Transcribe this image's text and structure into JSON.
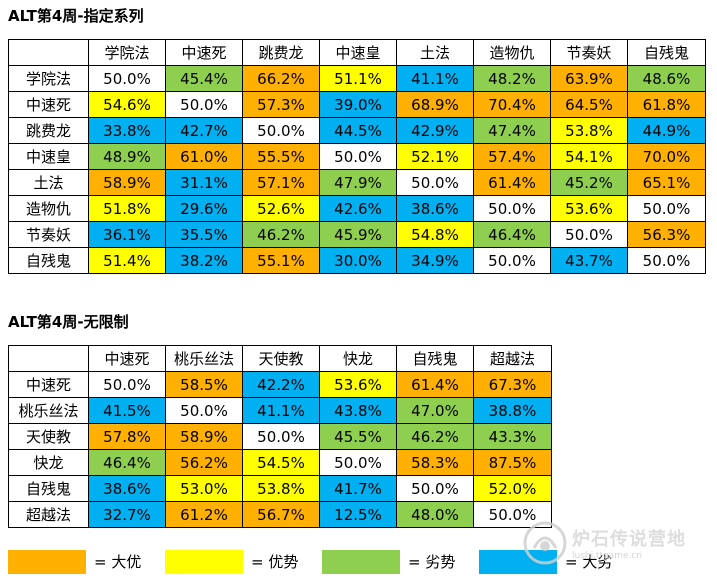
{
  "table1": {
    "title": "ALT第4周-指定系列",
    "columns": [
      "学院法",
      "中速死",
      "跳费龙",
      "中速皇",
      "土法",
      "造物仇",
      "节奏妖",
      "自残鬼"
    ],
    "rows": [
      {
        "label": "学院法",
        "cells": [
          [
            "50.0%",
            "even"
          ],
          [
            "45.4%",
            "lie"
          ],
          [
            "66.2%",
            "dayou"
          ],
          [
            "51.1%",
            "you"
          ],
          [
            "41.1%",
            "dalie"
          ],
          [
            "48.2%",
            "lie"
          ],
          [
            "63.9%",
            "dayou"
          ],
          [
            "48.6%",
            "lie"
          ]
        ]
      },
      {
        "label": "中速死",
        "cells": [
          [
            "54.6%",
            "you"
          ],
          [
            "50.0%",
            "even"
          ],
          [
            "57.3%",
            "dayou"
          ],
          [
            "39.0%",
            "dalie"
          ],
          [
            "68.9%",
            "dayou"
          ],
          [
            "70.4%",
            "dayou"
          ],
          [
            "64.5%",
            "dayou"
          ],
          [
            "61.8%",
            "dayou"
          ]
        ]
      },
      {
        "label": "跳费龙",
        "cells": [
          [
            "33.8%",
            "dalie"
          ],
          [
            "42.7%",
            "dalie"
          ],
          [
            "50.0%",
            "even"
          ],
          [
            "44.5%",
            "dalie"
          ],
          [
            "42.9%",
            "dalie"
          ],
          [
            "47.4%",
            "lie"
          ],
          [
            "53.8%",
            "you"
          ],
          [
            "44.9%",
            "dalie"
          ]
        ]
      },
      {
        "label": "中速皇",
        "cells": [
          [
            "48.9%",
            "lie"
          ],
          [
            "61.0%",
            "dayou"
          ],
          [
            "55.5%",
            "dayou"
          ],
          [
            "50.0%",
            "even"
          ],
          [
            "52.1%",
            "you"
          ],
          [
            "57.4%",
            "dayou"
          ],
          [
            "54.1%",
            "you"
          ],
          [
            "70.0%",
            "dayou"
          ]
        ]
      },
      {
        "label": "土法",
        "cells": [
          [
            "58.9%",
            "dayou"
          ],
          [
            "31.1%",
            "dalie"
          ],
          [
            "57.1%",
            "dayou"
          ],
          [
            "47.9%",
            "lie"
          ],
          [
            "50.0%",
            "even"
          ],
          [
            "61.4%",
            "dayou"
          ],
          [
            "45.2%",
            "lie"
          ],
          [
            "65.1%",
            "dayou"
          ]
        ]
      },
      {
        "label": "造物仇",
        "cells": [
          [
            "51.8%",
            "you"
          ],
          [
            "29.6%",
            "dalie"
          ],
          [
            "52.6%",
            "you"
          ],
          [
            "42.6%",
            "dalie"
          ],
          [
            "38.6%",
            "dalie"
          ],
          [
            "50.0%",
            "even"
          ],
          [
            "53.6%",
            "you"
          ],
          [
            "50.0%",
            "even"
          ]
        ]
      },
      {
        "label": "节奏妖",
        "cells": [
          [
            "36.1%",
            "dalie"
          ],
          [
            "35.5%",
            "dalie"
          ],
          [
            "46.2%",
            "lie"
          ],
          [
            "45.9%",
            "lie"
          ],
          [
            "54.8%",
            "you"
          ],
          [
            "46.4%",
            "lie"
          ],
          [
            "50.0%",
            "even"
          ],
          [
            "56.3%",
            "dayou"
          ]
        ]
      },
      {
        "label": "自残鬼",
        "cells": [
          [
            "51.4%",
            "you"
          ],
          [
            "38.2%",
            "dalie"
          ],
          [
            "55.1%",
            "dayou"
          ],
          [
            "30.0%",
            "dalie"
          ],
          [
            "34.9%",
            "dalie"
          ],
          [
            "50.0%",
            "even"
          ],
          [
            "43.7%",
            "dalie"
          ],
          [
            "50.0%",
            "even"
          ]
        ]
      }
    ]
  },
  "table2": {
    "title": "ALT第4周-无限制",
    "columns": [
      "中速死",
      "桃乐丝法",
      "天使教",
      "快龙",
      "自残鬼",
      "超越法"
    ],
    "rows": [
      {
        "label": "中速死",
        "cells": [
          [
            "50.0%",
            "even"
          ],
          [
            "58.5%",
            "dayou"
          ],
          [
            "42.2%",
            "dalie"
          ],
          [
            "53.6%",
            "you"
          ],
          [
            "61.4%",
            "dayou"
          ],
          [
            "67.3%",
            "dayou"
          ]
        ]
      },
      {
        "label": "桃乐丝法",
        "cells": [
          [
            "41.5%",
            "dalie"
          ],
          [
            "50.0%",
            "even"
          ],
          [
            "41.1%",
            "dalie"
          ],
          [
            "43.8%",
            "dalie"
          ],
          [
            "47.0%",
            "lie"
          ],
          [
            "38.8%",
            "dalie"
          ]
        ]
      },
      {
        "label": "天使教",
        "cells": [
          [
            "57.8%",
            "dayou"
          ],
          [
            "58.9%",
            "dayou"
          ],
          [
            "50.0%",
            "even"
          ],
          [
            "45.5%",
            "lie"
          ],
          [
            "46.2%",
            "lie"
          ],
          [
            "43.3%",
            "lie"
          ]
        ]
      },
      {
        "label": "快龙",
        "cells": [
          [
            "46.4%",
            "lie"
          ],
          [
            "56.2%",
            "dayou"
          ],
          [
            "54.5%",
            "you"
          ],
          [
            "50.0%",
            "even"
          ],
          [
            "58.3%",
            "dayou"
          ],
          [
            "87.5%",
            "dayou"
          ]
        ]
      },
      {
        "label": "自残鬼",
        "cells": [
          [
            "38.6%",
            "dalie"
          ],
          [
            "53.0%",
            "you"
          ],
          [
            "53.8%",
            "you"
          ],
          [
            "41.7%",
            "dalie"
          ],
          [
            "50.0%",
            "even"
          ],
          [
            "52.0%",
            "you"
          ]
        ]
      },
      {
        "label": "超越法",
        "cells": [
          [
            "32.7%",
            "dalie"
          ],
          [
            "61.2%",
            "dayou"
          ],
          [
            "56.7%",
            "dayou"
          ],
          [
            "12.5%",
            "dalie"
          ],
          [
            "48.0%",
            "lie"
          ],
          [
            "50.0%",
            "even"
          ]
        ]
      }
    ]
  },
  "legend": [
    {
      "key": "dayou",
      "label": "= 大优",
      "color": "#ffb000"
    },
    {
      "key": "you",
      "label": "= 优势",
      "color": "#ffff00"
    },
    {
      "key": "lie",
      "label": "= 劣势",
      "color": "#8fcf4f"
    },
    {
      "key": "dalie",
      "label": "= 大劣",
      "color": "#00b0f0"
    }
  ],
  "watermark": {
    "name": "炉石传说营地",
    "url": "lushi.ttgame.cn"
  }
}
